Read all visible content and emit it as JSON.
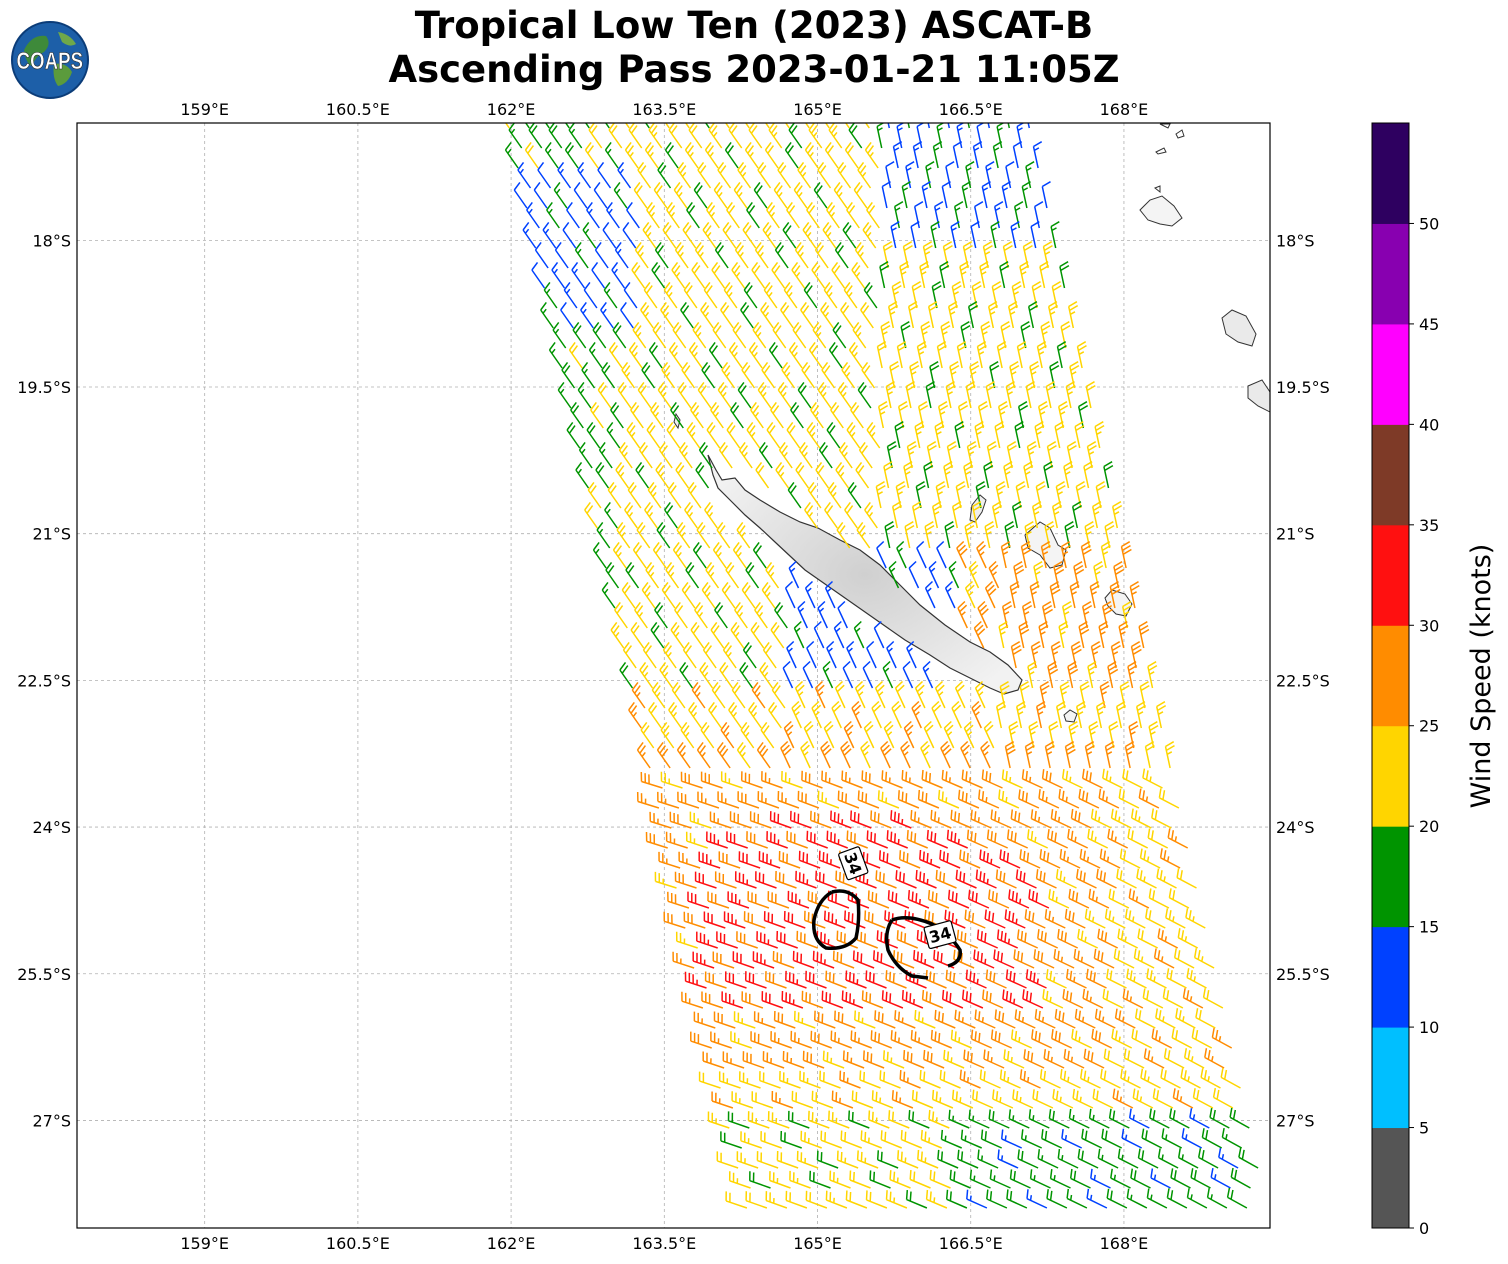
{
  "title": {
    "line1": "Tropical Low Ten (2023) ASCAT-B",
    "line2": "Ascending Pass 2023-01-21 11:05Z"
  },
  "logo": {
    "text": "COAPS",
    "icon": "globe-icon"
  },
  "map": {
    "lon_range": [
      157.75,
      169.43
    ],
    "lat_range": [
      -28.1,
      -16.8
    ],
    "lon_ticks": [
      {
        "value": 159,
        "label": "159°E"
      },
      {
        "value": 160.5,
        "label": "160.5°E"
      },
      {
        "value": 162,
        "label": "162°E"
      },
      {
        "value": 163.5,
        "label": "163.5°E"
      },
      {
        "value": 165,
        "label": "165°E"
      },
      {
        "value": 166.5,
        "label": "166.5°E"
      },
      {
        "value": 168,
        "label": "168°E"
      }
    ],
    "lat_ticks": [
      {
        "value": -18,
        "label": "18°S"
      },
      {
        "value": -19.5,
        "label": "19.5°S"
      },
      {
        "value": -21,
        "label": "21°S"
      },
      {
        "value": -22.5,
        "label": "22.5°S"
      },
      {
        "value": -24,
        "label": "24°S"
      },
      {
        "value": -25.5,
        "label": "25.5°S"
      },
      {
        "value": -27,
        "label": "27°S"
      }
    ],
    "grid": true,
    "contour_labels": [
      {
        "text": "34",
        "lon": 165.35,
        "lat": -24.37
      },
      {
        "text": "34",
        "lon": 166.2,
        "lat": -25.1
      }
    ]
  },
  "colorbar": {
    "label": "Wind Speed (knots)",
    "ticks": [
      "0",
      "5",
      "10",
      "15",
      "20",
      "25",
      "30",
      "35",
      "40",
      "45",
      "50"
    ],
    "colors": [
      "#555555",
      "#00bfff",
      "#0041ff",
      "#009400",
      "#ffd500",
      "#ff8c00",
      "#ff1010",
      "#7e3a27",
      "#ff00ff",
      "#8800b0",
      "#2e0060"
    ]
  }
}
